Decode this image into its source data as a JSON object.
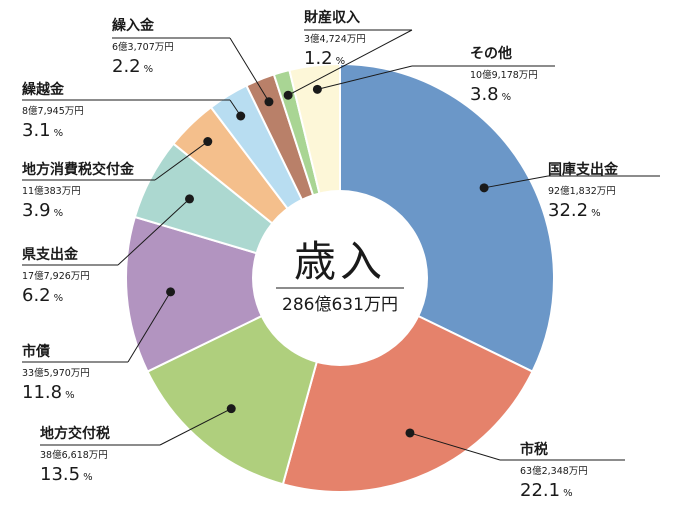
{
  "chart_data": {
    "type": "pie",
    "donut": true,
    "center_title": "歳入",
    "center_total": "286億631万円",
    "slices": [
      {
        "name": "国庫支出金",
        "amount": "92億1,832万円",
        "percent_text": "32.2",
        "value": 32.2,
        "color": "#6b97c8"
      },
      {
        "name": "市税",
        "amount": "63億2,348万円",
        "percent_text": "22.1",
        "value": 22.1,
        "color": "#e5826b"
      },
      {
        "name": "地方交付税",
        "amount": "38億6,618万円",
        "percent_text": "13.5",
        "value": 13.5,
        "color": "#afcf7d"
      },
      {
        "name": "市債",
        "amount": "33億5,970万円",
        "percent_text": "11.8",
        "value": 11.8,
        "color": "#b294c0"
      },
      {
        "name": "県支出金",
        "amount": "17億7,926万円",
        "percent_text": "6.2",
        "value": 6.2,
        "color": "#acd8d0"
      },
      {
        "name": "地方消費税交付金",
        "amount": "11億383万円",
        "percent_text": "3.9",
        "value": 3.9,
        "color": "#f4bf8c"
      },
      {
        "name": "繰越金",
        "amount": "8億7,945万円",
        "percent_text": "3.1",
        "value": 3.1,
        "color": "#b8ddf1"
      },
      {
        "name": "繰入金",
        "amount": "6億3,707万円",
        "percent_text": "2.2",
        "value": 2.2,
        "color": "#b98069"
      },
      {
        "name": "財産収入",
        "amount": "3億4,724万円",
        "percent_text": "1.2",
        "value": 1.2,
        "color": "#a9d594"
      },
      {
        "name": "その他",
        "amount": "10億9,178万円",
        "percent_text": "3.8",
        "value": 3.8,
        "color": "#fdf7d8"
      }
    ],
    "percent_sign": "%"
  }
}
